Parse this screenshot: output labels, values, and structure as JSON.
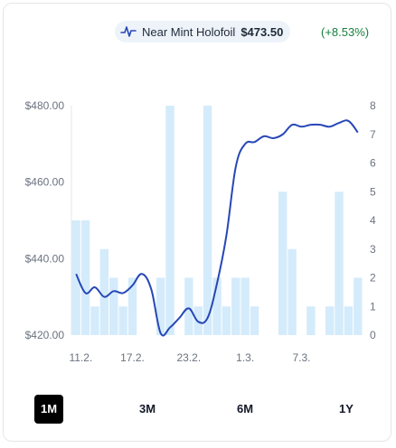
{
  "legend": {
    "icon": "sparkline-icon",
    "name": "Near Mint Holofoil",
    "price": "$473.50",
    "change": "(+8.53%)",
    "change_color": "#15803d"
  },
  "colors": {
    "line": "#2747b6",
    "bar": "#d4ebfb",
    "axis_text": "#6b7280"
  },
  "range_buttons": [
    {
      "label": "1M",
      "active": true
    },
    {
      "label": "3M",
      "active": false
    },
    {
      "label": "6M",
      "active": false
    },
    {
      "label": "1Y",
      "active": false
    }
  ],
  "chart_data": {
    "type": "line+bar",
    "left_axis": {
      "ticks": [
        "$480.00",
        "$460.00",
        "$440.00",
        "$420.00"
      ],
      "tick_values": [
        480,
        460,
        440,
        420
      ],
      "ylim": [
        420,
        480
      ]
    },
    "right_axis": {
      "ticks": [
        "8",
        "7",
        "6",
        "5",
        "4",
        "3",
        "2",
        "1",
        "0"
      ],
      "tick_values": [
        8,
        7,
        6,
        5,
        4,
        3,
        2,
        1,
        0
      ],
      "ylim": [
        0,
        8
      ]
    },
    "x_ticks": [
      {
        "label": "11.2.",
        "index": 0.5
      },
      {
        "label": "17.2.",
        "index": 6
      },
      {
        "label": "23.2.",
        "index": 12
      },
      {
        "label": "1.3.",
        "index": 18
      },
      {
        "label": "7.3.",
        "index": 24
      }
    ],
    "grid": false,
    "bars": {
      "axis": "right",
      "values": [
        4,
        4,
        1,
        3,
        2,
        1,
        2,
        0,
        0,
        2,
        8,
        0,
        2,
        1,
        8,
        2,
        1,
        2,
        2,
        1,
        0,
        0,
        5,
        3,
        0,
        1,
        0,
        1,
        5,
        1,
        2
      ]
    },
    "line": {
      "axis": "left",
      "values": [
        436,
        431,
        432.5,
        430,
        431.5,
        431,
        433,
        436,
        432,
        420.5,
        422,
        424.5,
        427,
        423.5,
        424.5,
        433.5,
        446,
        464,
        470,
        470.5,
        472,
        471.5,
        472.5,
        475,
        474.5,
        475,
        475,
        474.5,
        475.5,
        476,
        473
      ]
    }
  }
}
